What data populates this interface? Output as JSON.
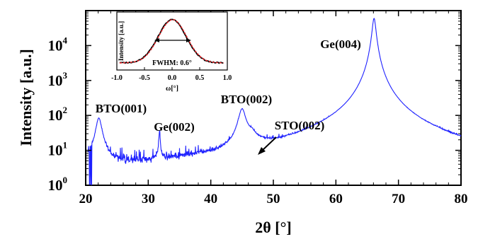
{
  "chart_data": [
    {
      "type": "line",
      "xlabel": "2θ [°]",
      "ylabel": "Intensity [a.u.]",
      "xlim": [
        20,
        80
      ],
      "ylim": [
        1,
        100000
      ],
      "yscale": "log",
      "x_ticks": [
        20,
        30,
        40,
        50,
        60,
        70,
        80
      ],
      "y_ticks": [
        {
          "value": 1,
          "base": "10",
          "exp": "0"
        },
        {
          "value": 10,
          "base": "10",
          "exp": "1"
        },
        {
          "value": 100,
          "base": "10",
          "exp": "2"
        },
        {
          "value": 1000,
          "base": "10",
          "exp": "3"
        },
        {
          "value": 10000,
          "base": "10",
          "exp": "4"
        }
      ],
      "grid": false,
      "line_color": "#1f22ff",
      "background_level": 1.6,
      "peaks": [
        {
          "label": "BTO(001)",
          "x": 22.1,
          "y": 80
        },
        {
          "label": "Ge(002)",
          "x": 31.8,
          "y": 28
        },
        {
          "label": "BTO(002)",
          "x": 45.0,
          "y": 140
        },
        {
          "label": "STO(002)",
          "x": 46.5,
          "y": 12
        },
        {
          "label": "Ge(004)",
          "x": 66.1,
          "y": 60000
        }
      ],
      "annotations": [
        {
          "text": "BTO(001)"
        },
        {
          "text": "Ge(002)"
        },
        {
          "text": "BTO(002)"
        },
        {
          "text": "STO(002)"
        },
        {
          "text": "Ge(004)"
        }
      ]
    },
    {
      "type": "line",
      "xlabel": "ω[°]",
      "ylabel": "Intensity [a.u.]",
      "xlim": [
        -1.0,
        1.0
      ],
      "x_ticks": [
        "-1.0",
        "-0.5",
        "0.0",
        "0.5",
        "1.0"
      ],
      "annotation": "FWHM: 0.6°",
      "fwhm": 0.6,
      "series": [
        {
          "color": "#000000",
          "style": "solid"
        },
        {
          "color": "#e8262a",
          "style": "dashed"
        }
      ]
    }
  ]
}
